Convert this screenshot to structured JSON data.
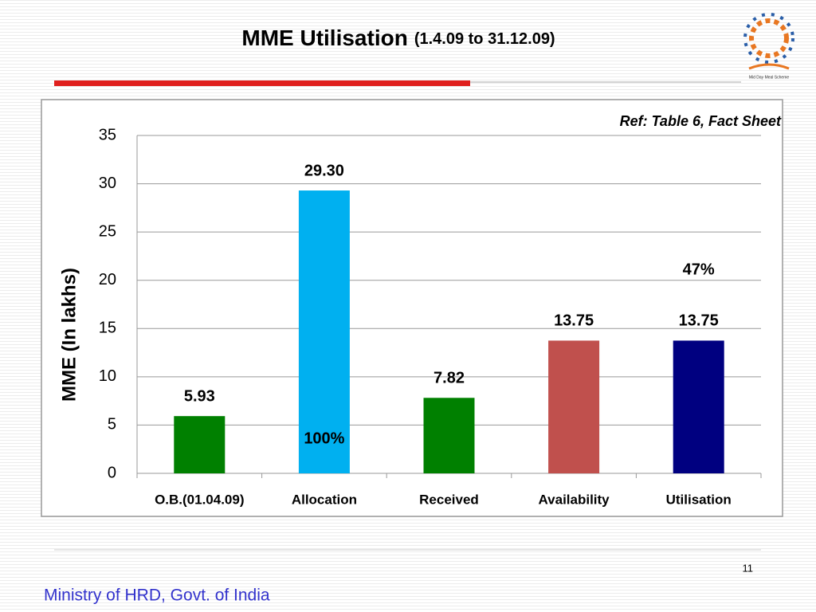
{
  "chart_data": {
    "type": "bar",
    "title": "MME Utilisation",
    "subtitle": "(1.4.09 to 31.12.09)",
    "y_label": "MME (In lakhs)",
    "note": "Ref: Table 6, Fact Sheet",
    "categories": [
      "O.B.(01.04.09)",
      "Allocation",
      "Received",
      "Availability",
      "Utilisation"
    ],
    "values": [
      5.93,
      29.3,
      7.82,
      13.75,
      13.75
    ],
    "value_labels": [
      "5.93",
      "29.30",
      "7.82",
      "13.75",
      "13.75"
    ],
    "colors": [
      "#008000",
      "#00b0f0",
      "#008000",
      "#c0504d",
      "#000080"
    ],
    "annotations": [
      "100%",
      "47%"
    ],
    "ylim": [
      0,
      35
    ],
    "yticks": [
      0,
      5,
      10,
      15,
      20,
      25,
      30,
      35
    ],
    "grid": true
  },
  "logo_text": "Mid Day Meal Scheme",
  "page_number": "11",
  "footer": "Ministry of HRD, Govt. of India"
}
